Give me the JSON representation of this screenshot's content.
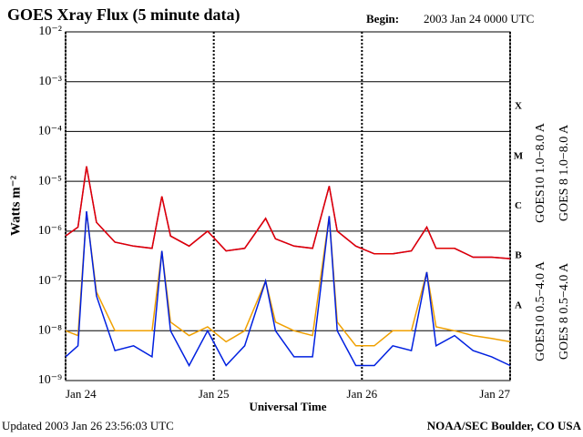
{
  "chart_data": {
    "type": "line",
    "title": "GOES Xray Flux (5 minute data)",
    "begin_label": "Begin:",
    "begin": "2003 Jan 24 0000 UTC",
    "xlabel": "Universal Time",
    "ylabel": "Watts m⁻²",
    "updated": "Updated 2003 Jan 26 23:56:03 UTC",
    "source": "NOAA/SEC Boulder, CO USA",
    "log_y": true,
    "grid": true,
    "xlim": [
      0,
      72
    ],
    "xticks": [
      {
        "value": 0,
        "label": "Jan 24"
      },
      {
        "value": 24,
        "label": "Jan 25"
      },
      {
        "value": 48,
        "label": "Jan 26"
      },
      {
        "value": 72,
        "label": "Jan 27"
      }
    ],
    "ylim": [
      1e-09,
      0.01
    ],
    "yticks": [
      {
        "value": 1e-09,
        "label": "10⁻⁹"
      },
      {
        "value": 1e-08,
        "label": "10⁻⁸"
      },
      {
        "value": 1e-07,
        "label": "10⁻⁷"
      },
      {
        "value": 1e-06,
        "label": "10⁻⁶"
      },
      {
        "value": 1e-05,
        "label": "10⁻⁵"
      },
      {
        "value": 0.0001,
        "label": "10⁻⁴"
      },
      {
        "value": 0.001,
        "label": "10⁻³"
      },
      {
        "value": 0.01,
        "label": "10⁻²"
      }
    ],
    "flare_classes": [
      "A",
      "B",
      "C",
      "M",
      "X"
    ],
    "x": [
      0,
      2,
      3.4,
      5,
      8,
      11,
      14,
      15.6,
      17,
      20,
      23,
      26,
      29,
      32.4,
      34,
      37,
      40,
      42.7,
      44,
      47,
      50,
      53,
      56,
      58.5,
      60,
      63,
      66,
      69,
      72
    ],
    "series": [
      {
        "name": "GOES10 1.0−8.0 A",
        "color": "#9010b0",
        "values": [
          8e-07,
          1.2e-06,
          2e-05,
          1.5e-06,
          6e-07,
          5e-07,
          4.5e-07,
          5e-06,
          8e-07,
          5e-07,
          1e-06,
          4e-07,
          4.5e-07,
          1.8e-06,
          7e-07,
          5e-07,
          4.5e-07,
          8e-06,
          1e-06,
          5e-07,
          3.5e-07,
          3.5e-07,
          4e-07,
          1.2e-06,
          4.5e-07,
          4.5e-07,
          3e-07,
          3e-07,
          2.8e-07
        ]
      },
      {
        "name": "GOES 8 1.0−8.0 A",
        "color": "#e00000",
        "values": [
          8e-07,
          1.2e-06,
          2e-05,
          1.5e-06,
          6e-07,
          5e-07,
          4.5e-07,
          5e-06,
          8e-07,
          5e-07,
          1e-06,
          4e-07,
          4.5e-07,
          1.8e-06,
          7e-07,
          5e-07,
          4.5e-07,
          8e-06,
          1e-06,
          5e-07,
          3.5e-07,
          3.5e-07,
          4e-07,
          1.2e-06,
          4.5e-07,
          4.5e-07,
          3e-07,
          3e-07,
          2.8e-07
        ]
      },
      {
        "name": "GOES10 0.5−4.0 A",
        "color": "#f0a000",
        "values": [
          1e-08,
          8e-09,
          2.4e-06,
          6e-08,
          1e-08,
          1e-08,
          1e-08,
          4e-07,
          1.5e-08,
          8e-09,
          1.2e-08,
          6e-09,
          1e-08,
          1e-07,
          1.5e-08,
          1e-08,
          8e-09,
          2e-06,
          1.5e-08,
          5e-09,
          5e-09,
          1e-08,
          1e-08,
          1.5e-07,
          1.2e-08,
          1e-08,
          8e-09,
          7e-09,
          6e-09
        ]
      },
      {
        "name": "GOES 8 0.5−4.0 A",
        "color": "#0020e0",
        "values": [
          3e-09,
          5e-09,
          2.5e-06,
          5e-08,
          4e-09,
          5e-09,
          3e-09,
          4e-07,
          1e-08,
          2e-09,
          1e-08,
          2e-09,
          5e-09,
          1e-07,
          1e-08,
          3e-09,
          3e-09,
          2e-06,
          1e-08,
          2e-09,
          2e-09,
          5e-09,
          4e-09,
          1.5e-07,
          5e-09,
          8e-09,
          4e-09,
          3e-09,
          2e-09
        ]
      }
    ]
  }
}
